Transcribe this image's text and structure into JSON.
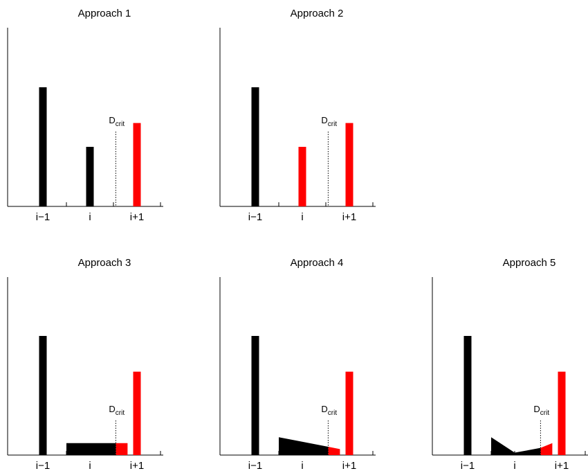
{
  "figure": {
    "tick_labels": [
      "i−1",
      "i",
      "i+1"
    ],
    "dcrit_label": {
      "base": "D",
      "subscript": "crit"
    },
    "colors": {
      "unaffected": "#000000",
      "affected": "#ff0000"
    },
    "panels": [
      {
        "id": "approach-1",
        "title": "Approach 1",
        "dcrit": 2.55,
        "bars": [
          {
            "x": 1,
            "height": 100,
            "color": "unaffected"
          },
          {
            "x": 2,
            "height": 50,
            "color": "unaffected"
          },
          {
            "x": 3,
            "height": 70,
            "color": "affected"
          }
        ],
        "shapes": []
      },
      {
        "id": "approach-2",
        "title": "Approach 2",
        "dcrit": 2.55,
        "bars": [
          {
            "x": 1,
            "height": 100,
            "color": "unaffected"
          },
          {
            "x": 2,
            "height": 50,
            "color": "affected"
          },
          {
            "x": 3,
            "height": 70,
            "color": "affected"
          }
        ],
        "shapes": []
      },
      {
        "id": "approach-3",
        "title": "Approach 3",
        "dcrit": 2.55,
        "bars": [
          {
            "x": 1,
            "height": 100,
            "color": "unaffected"
          },
          {
            "x": 3,
            "height": 70,
            "color": "affected"
          }
        ],
        "shapes": [
          {
            "color": "unaffected",
            "points": [
              [
                1.5,
                0
              ],
              [
                1.5,
                10
              ],
              [
                2.55,
                10
              ],
              [
                2.55,
                0
              ]
            ]
          },
          {
            "color": "affected",
            "points": [
              [
                2.55,
                0
              ],
              [
                2.55,
                10
              ],
              [
                2.8,
                10
              ],
              [
                2.8,
                0
              ]
            ]
          }
        ]
      },
      {
        "id": "approach-4",
        "title": "Approach 4",
        "dcrit": 2.55,
        "bars": [
          {
            "x": 1,
            "height": 100,
            "color": "unaffected"
          },
          {
            "x": 3,
            "height": 70,
            "color": "affected"
          }
        ],
        "shapes": [
          {
            "color": "unaffected",
            "points": [
              [
                1.5,
                0
              ],
              [
                1.5,
                15
              ],
              [
                2.55,
                7
              ],
              [
                2.55,
                0
              ]
            ]
          },
          {
            "color": "affected",
            "points": [
              [
                2.55,
                0
              ],
              [
                2.55,
                7
              ],
              [
                2.8,
                5
              ],
              [
                2.8,
                0
              ]
            ]
          }
        ]
      },
      {
        "id": "approach-5",
        "title": "Approach 5",
        "dcrit": 2.55,
        "bars": [
          {
            "x": 1,
            "height": 100,
            "color": "unaffected"
          },
          {
            "x": 3,
            "height": 70,
            "color": "affected"
          }
        ],
        "shapes": [
          {
            "color": "unaffected",
            "points": [
              [
                1.5,
                0
              ],
              [
                1.5,
                15
              ],
              [
                2.0,
                2
              ],
              [
                2.55,
                6
              ],
              [
                2.55,
                0
              ]
            ]
          },
          {
            "color": "affected",
            "points": [
              [
                2.55,
                0
              ],
              [
                2.55,
                6
              ],
              [
                2.8,
                10
              ],
              [
                2.8,
                0
              ]
            ]
          }
        ]
      }
    ]
  }
}
